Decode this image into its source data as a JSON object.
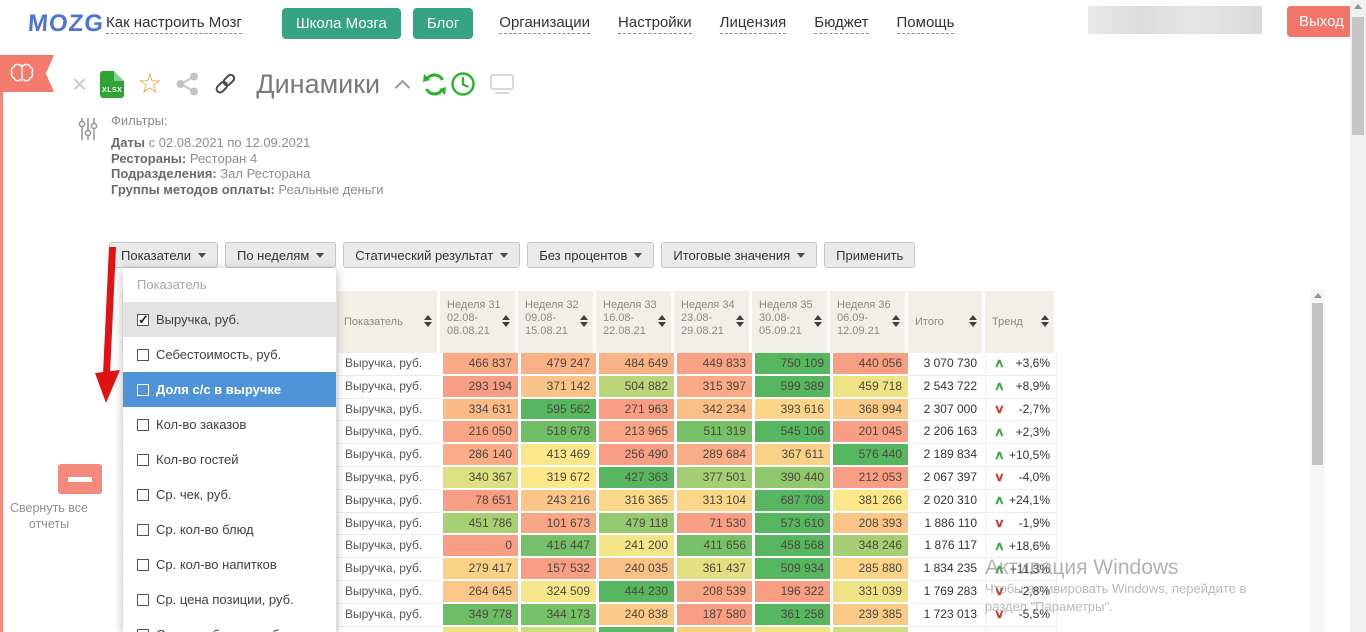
{
  "nav": {
    "logo": "MOZG",
    "setup_link": "Как настроить Мозг",
    "school_button": "Школа Мозга",
    "blog_button": "Блог",
    "links": [
      "Организации",
      "Настройки",
      "Лицензия",
      "Бюджет",
      "Помощь"
    ],
    "logout_button": "Выход"
  },
  "report": {
    "title": "Динамики"
  },
  "filters": {
    "heading": "Фильтры:",
    "lines": [
      {
        "label": "Даты",
        "value": " с 02.08.2021 по 12.09.2021"
      },
      {
        "label": "Рестораны:",
        "value": " Ресторан 4"
      },
      {
        "label": "Подразделения:",
        "value": " Зал Ресторана"
      },
      {
        "label": "Группы методов оплаты:",
        "value": " Реальные деньги"
      }
    ]
  },
  "toolbar": {
    "dropdowns": [
      "Показатели",
      "По неделям",
      "Статический результат",
      "Без процентов",
      "Итоговые значения"
    ],
    "apply_label": "Применить"
  },
  "dropdown_menu": {
    "header": "Показатель",
    "items": [
      {
        "label": "Выручка, руб.",
        "checked": true,
        "state": "selected"
      },
      {
        "label": "Себестоимость, руб.",
        "checked": false,
        "state": ""
      },
      {
        "label": "Доля с/с в выручке",
        "checked": false,
        "state": "hovered"
      },
      {
        "label": "Кол-во заказов",
        "checked": false,
        "state": ""
      },
      {
        "label": "Кол-во гостей",
        "checked": false,
        "state": ""
      },
      {
        "label": "Ср. чек, руб.",
        "checked": false,
        "state": ""
      },
      {
        "label": "Ср. кол-во блюд",
        "checked": false,
        "state": ""
      },
      {
        "label": "Ср. кол-во напитков",
        "checked": false,
        "state": ""
      },
      {
        "label": "Ср. цена позиции, руб.",
        "checked": false,
        "state": ""
      },
      {
        "label": "Ср. цена блюда, руб.",
        "checked": false,
        "state": ""
      }
    ]
  },
  "table": {
    "row_label": "Выручка, руб.",
    "columns": [
      {
        "title": "Показатель",
        "type": "name"
      },
      {
        "title": "Неделя 31",
        "range": "02.08-",
        "range2": "08.08.21",
        "type": "week"
      },
      {
        "title": "Неделя 32",
        "range": "09.08-",
        "range2": "15.08.21",
        "type": "week"
      },
      {
        "title": "Неделя 33",
        "range": "16.08-",
        "range2": "22.08.21",
        "type": "week"
      },
      {
        "title": "Неделя 34",
        "range": "23.08-",
        "range2": "29.08.21",
        "type": "week"
      },
      {
        "title": "Неделя 35",
        "range": "30.08-",
        "range2": "05.09.21",
        "type": "week"
      },
      {
        "title": "Неделя 36",
        "range": "06.09-",
        "range2": "12.09.21",
        "type": "week"
      },
      {
        "title": "Итого",
        "type": "total"
      },
      {
        "title": "Тренд",
        "type": "trend"
      }
    ],
    "rows": [
      {
        "values": [
          466837,
          479247,
          484649,
          449833,
          750109,
          440056
        ],
        "total": "3 070 730",
        "trend": "+3,6%",
        "dir": "up"
      },
      {
        "values": [
          293194,
          371142,
          504882,
          315397,
          599389,
          459718
        ],
        "total": "2 543 722",
        "trend": "+8,9%",
        "dir": "up"
      },
      {
        "values": [
          334631,
          595562,
          271963,
          342234,
          393616,
          368994
        ],
        "total": "2 307 000",
        "trend": "-2,7%",
        "dir": "down"
      },
      {
        "values": [
          216050,
          518678,
          213965,
          511319,
          545106,
          201045
        ],
        "total": "2 206 163",
        "trend": "+2,3%",
        "dir": "up"
      },
      {
        "values": [
          286140,
          413469,
          256490,
          289684,
          367611,
          576440
        ],
        "total": "2 189 834",
        "trend": "+10,5%",
        "dir": "up"
      },
      {
        "values": [
          340367,
          319672,
          427363,
          377501,
          390440,
          212053
        ],
        "total": "2 067 397",
        "trend": "-4,0%",
        "dir": "down"
      },
      {
        "values": [
          78651,
          243216,
          316365,
          313104,
          687708,
          381266
        ],
        "total": "2 020 310",
        "trend": "+24,1%",
        "dir": "up"
      },
      {
        "values": [
          451786,
          101673,
          479118,
          71530,
          573610,
          208393
        ],
        "total": "1 886 110",
        "trend": "-1,9%",
        "dir": "down"
      },
      {
        "values": [
          0,
          416447,
          241200,
          411656,
          458568,
          348246
        ],
        "total": "1 876 117",
        "trend": "+18,6%",
        "dir": "up"
      },
      {
        "values": [
          279417,
          157532,
          240035,
          361437,
          509934,
          285880
        ],
        "total": "1 834 235",
        "trend": "+11,3%",
        "dir": "up"
      },
      {
        "values": [
          264645,
          324509,
          444230,
          208539,
          196322,
          331039
        ],
        "total": "1 769 283",
        "trend": "-2,8%",
        "dir": "down"
      },
      {
        "values": [
          349778,
          344173,
          240838,
          187580,
          361258,
          239385
        ],
        "total": "1 723 013",
        "trend": "-5,5%",
        "dir": "down"
      }
    ],
    "partial_row_colors": [
      "#ede781",
      "#cfdd7f",
      "#5eb966",
      "#f6d07f",
      "#ede781",
      "#cfdd7f"
    ],
    "heatmap": {
      "low": "#f89e85",
      "mid": "#fce88a",
      "high": "#57b760"
    }
  },
  "trend_icons": {
    "up": "∧",
    "down": "∨"
  },
  "watermark": {
    "title": "Активация Windows",
    "line1": "Чтобы активировать Windows, перейдите в",
    "line2": "раздел \"Параметры\"."
  },
  "sidebar": {
    "collapse_label": "Свернуть все отчеты"
  },
  "colors": {
    "brand_green": "#36a483",
    "salmon": "#f4766b",
    "hover_blue": "#4f93d8",
    "trend_up": "#3ba93f",
    "trend_down": "#d5342b"
  }
}
